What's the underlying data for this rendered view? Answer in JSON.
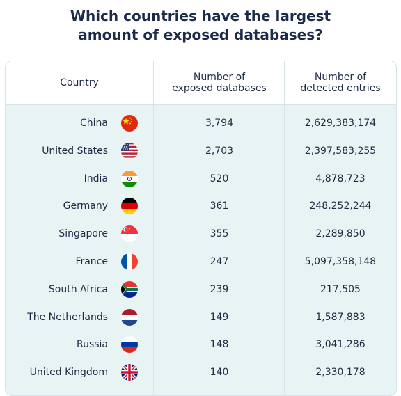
{
  "title_line1": "Which countries have the largest",
  "title_line2": "amount of exposed databases?",
  "headers": {
    "country": "Country",
    "databases": "Number of\nexposed databases",
    "entries": "Number of\ndetected entries"
  },
  "chart_data": {
    "type": "table",
    "title": "Which countries have the largest amount of exposed databases?",
    "columns": [
      "Country",
      "Number of exposed databases",
      "Number of detected entries"
    ],
    "rows": [
      {
        "country": "China",
        "flag": "china-flag-icon",
        "databases": "3,794",
        "entries": "2,629,383,174"
      },
      {
        "country": "United States",
        "flag": "usa-flag-icon",
        "databases": "2,703",
        "entries": "2,397,583,255"
      },
      {
        "country": "India",
        "flag": "india-flag-icon",
        "databases": "520",
        "entries": "4,878,723"
      },
      {
        "country": "Germany",
        "flag": "germany-flag-icon",
        "databases": "361",
        "entries": "248,252,244"
      },
      {
        "country": "Singapore",
        "flag": "singapore-flag-icon",
        "databases": "355",
        "entries": "2,289,850"
      },
      {
        "country": "France",
        "flag": "france-flag-icon",
        "databases": "247",
        "entries": "5,097,358,148"
      },
      {
        "country": "South Africa",
        "flag": "south-africa-flag-icon",
        "databases": "239",
        "entries": "217,505"
      },
      {
        "country": "The Netherlands",
        "flag": "netherlands-flag-icon",
        "databases": "149",
        "entries": "1,587,883"
      },
      {
        "country": "Russia",
        "flag": "russia-flag-icon",
        "databases": "148",
        "entries": "3,041,286"
      },
      {
        "country": "United Kingdom",
        "flag": "uk-flag-icon",
        "databases": "140",
        "entries": "2,330,178"
      }
    ]
  },
  "colors": {
    "title": "#1c2b4a",
    "text": "#1f2a44",
    "body_background": "#e8f4f3",
    "header_background": "#ffffff",
    "border": "#d8e3e8"
  }
}
